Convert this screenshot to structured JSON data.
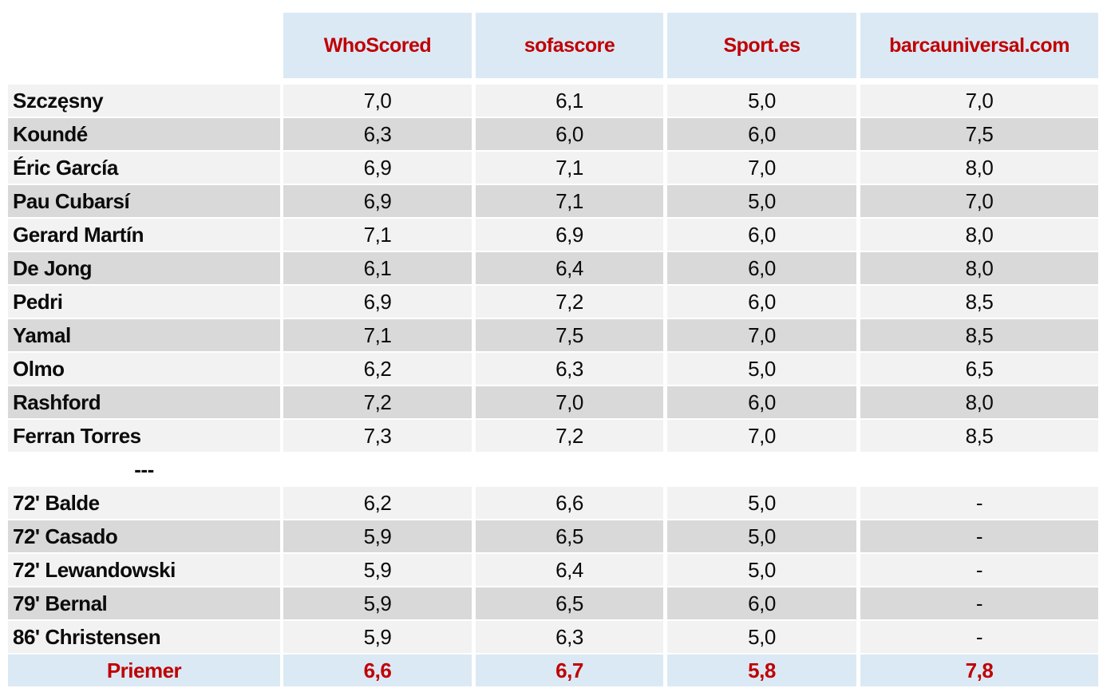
{
  "colors": {
    "header_bg": "#dbe9f5",
    "row_light": "#f2f2f2",
    "row_dark": "#d9d9d9",
    "accent_red": "#c00000",
    "text": "#0b0b0b"
  },
  "table": {
    "columns": [
      "WhoScored",
      "sofascore",
      "Sport.es",
      "barcauniversal.com"
    ],
    "starters": [
      {
        "name": "Szczęsny",
        "ratings": [
          "7,0",
          "6,1",
          "5,0",
          "7,0"
        ]
      },
      {
        "name": "Koundé",
        "ratings": [
          "6,3",
          "6,0",
          "6,0",
          "7,5"
        ]
      },
      {
        "name": "Éric García",
        "ratings": [
          "6,9",
          "7,1",
          "7,0",
          "8,0"
        ]
      },
      {
        "name": "Pau Cubarsí",
        "ratings": [
          "6,9",
          "7,1",
          "5,0",
          "7,0"
        ]
      },
      {
        "name": "Gerard Martín",
        "ratings": [
          "7,1",
          "6,9",
          "6,0",
          "8,0"
        ]
      },
      {
        "name": "De Jong",
        "ratings": [
          "6,1",
          "6,4",
          "6,0",
          "8,0"
        ]
      },
      {
        "name": "Pedri",
        "ratings": [
          "6,9",
          "7,2",
          "6,0",
          "8,5"
        ]
      },
      {
        "name": "Yamal",
        "ratings": [
          "7,1",
          "7,5",
          "7,0",
          "8,5"
        ]
      },
      {
        "name": "Olmo",
        "ratings": [
          "6,2",
          "6,3",
          "5,0",
          "6,5"
        ]
      },
      {
        "name": "Rashford",
        "ratings": [
          "7,2",
          "7,0",
          "6,0",
          "8,0"
        ]
      },
      {
        "name": "Ferran Torres",
        "ratings": [
          "7,3",
          "7,2",
          "7,0",
          "8,5"
        ]
      }
    ],
    "separator_label": "---",
    "substitutes": [
      {
        "name": "72' Balde",
        "ratings": [
          "6,2",
          "6,6",
          "5,0",
          "-"
        ]
      },
      {
        "name": "72' Casado",
        "ratings": [
          "5,9",
          "6,5",
          "5,0",
          "-"
        ]
      },
      {
        "name": "72' Lewandowski",
        "ratings": [
          "5,9",
          "6,4",
          "5,0",
          "-"
        ]
      },
      {
        "name": "79' Bernal",
        "ratings": [
          "5,9",
          "6,5",
          "6,0",
          "-"
        ]
      },
      {
        "name": "86' Christensen",
        "ratings": [
          "5,9",
          "6,3",
          "5,0",
          "-"
        ]
      }
    ],
    "summary": {
      "label": "Priemer",
      "ratings": [
        "6,6",
        "6,7",
        "5,8",
        "7,8"
      ]
    }
  }
}
